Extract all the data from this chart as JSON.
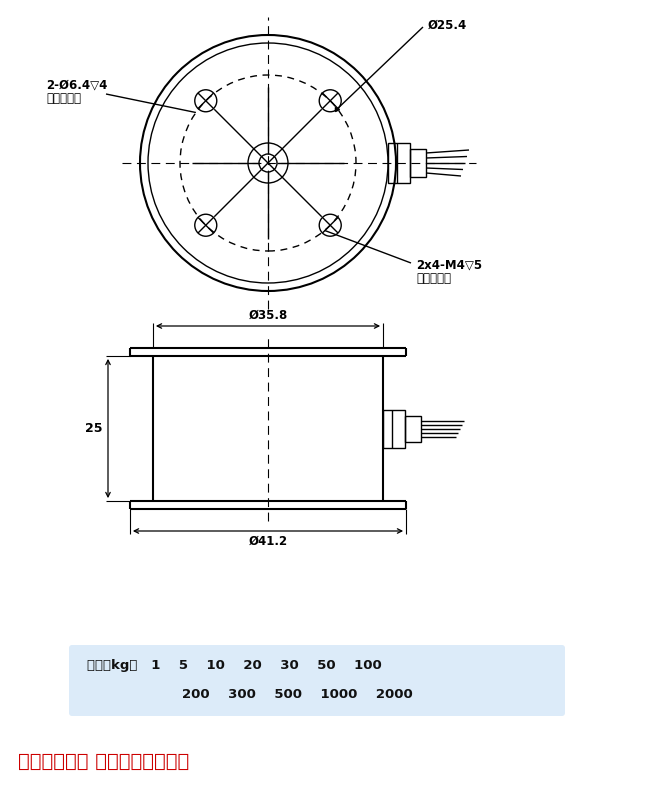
{
  "bg_color": "#ffffff",
  "line_color": "#000000",
  "text_color": "#1a1a1a",
  "red_color": "#cc0000",
  "title_note": "注：可选量程 外形尺寸一样大。",
  "label_25_4": "Ø25.4",
  "label_2x4_m4": "2x4-M4▽5",
  "label_symmetry_right": "上下面对称",
  "label_2_phi6_4": "2-Ø6.4▽4",
  "label_symmetry_left": "上下面对称",
  "label_35_8": "Ø35.8",
  "label_41_2": "Ø41.2",
  "label_25": "25",
  "range_line1": "量程（kg）   1    5    10    20    30    50    100",
  "range_line2": "200    300    500    1000    2000"
}
